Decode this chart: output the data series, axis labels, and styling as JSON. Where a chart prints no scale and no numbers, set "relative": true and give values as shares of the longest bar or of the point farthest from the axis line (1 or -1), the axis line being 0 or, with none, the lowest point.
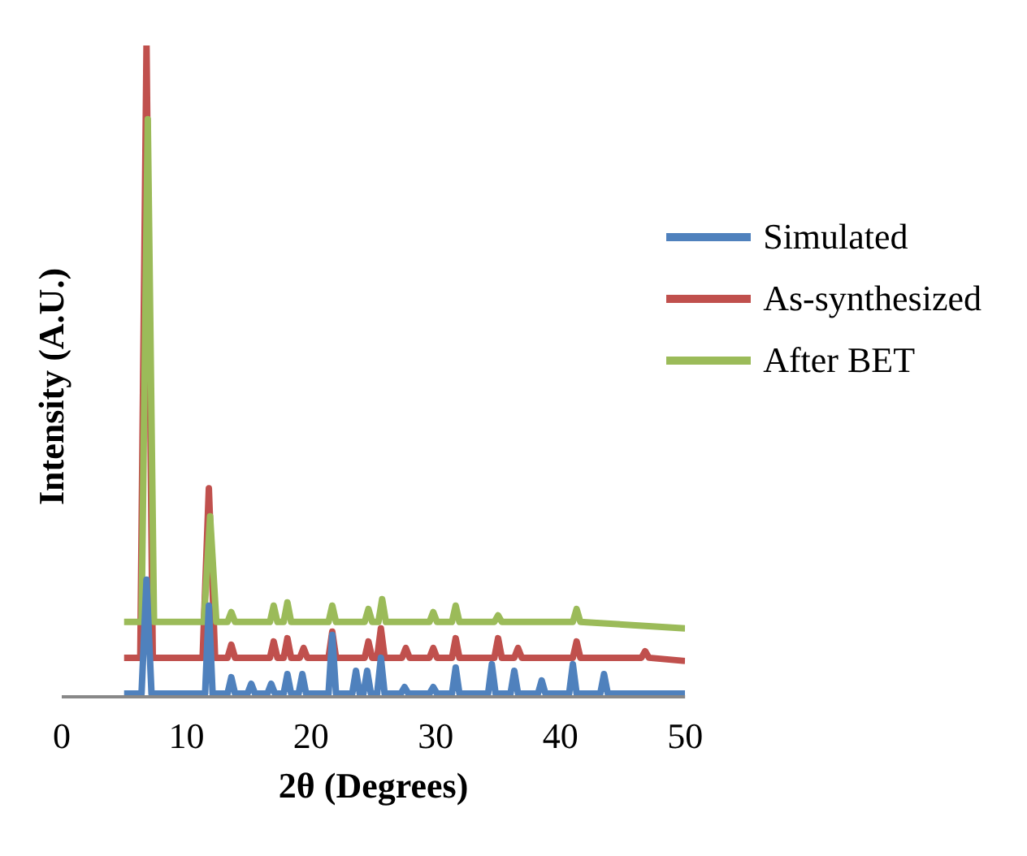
{
  "chart_data": {
    "type": "line",
    "relative": true,
    "xlabel": "2θ (Degrees)",
    "ylabel": "Intensity (A.U.)",
    "xlim": [
      0,
      50
    ],
    "xticks": [
      0,
      10,
      20,
      30,
      40,
      50
    ],
    "legend": "top right",
    "grid": false,
    "marker": "none",
    "line_style": "solid",
    "series": [
      {
        "name": "Simulated",
        "color": "#4f81bd",
        "x": [
          5,
          6.4,
          6.8,
          7.2,
          11.5,
          11.8,
          12.1,
          13.3,
          13.6,
          13.9,
          14.9,
          15.2,
          15.5,
          16.5,
          16.8,
          17.1,
          17.8,
          18.1,
          18.4,
          19.0,
          19.3,
          19.6,
          21.4,
          21.7,
          22.0,
          23.3,
          23.6,
          23.9,
          24.2,
          24.5,
          24.8,
          25.3,
          25.6,
          25.9,
          27.2,
          27.5,
          27.8,
          29.5,
          29.8,
          30.1,
          31.3,
          31.6,
          31.9,
          34.2,
          34.5,
          34.8,
          36.0,
          36.3,
          36.6,
          38.2,
          38.5,
          38.8,
          40.7,
          41.0,
          41.3,
          43.2,
          43.5,
          43.8,
          50
        ],
        "values": [
          0.005,
          0.005,
          0.18,
          0.005,
          0.005,
          0.14,
          0.005,
          0.005,
          0.03,
          0.005,
          0.005,
          0.02,
          0.005,
          0.005,
          0.02,
          0.005,
          0.005,
          0.035,
          0.005,
          0.005,
          0.035,
          0.005,
          0.005,
          0.095,
          0.005,
          0.005,
          0.04,
          0.005,
          0.005,
          0.04,
          0.005,
          0.005,
          0.06,
          0.005,
          0.005,
          0.015,
          0.005,
          0.005,
          0.015,
          0.005,
          0.005,
          0.045,
          0.005,
          0.005,
          0.05,
          0.005,
          0.005,
          0.04,
          0.005,
          0.005,
          0.025,
          0.005,
          0.005,
          0.05,
          0.005,
          0.005,
          0.035,
          0.005,
          0.005
        ]
      },
      {
        "name": "As-synthesized",
        "color": "#c0504d",
        "x": [
          5,
          6.3,
          6.8,
          7.3,
          11.3,
          11.8,
          12.3,
          13.3,
          13.6,
          13.9,
          16.7,
          17.0,
          17.3,
          17.8,
          18.1,
          18.4,
          19.1,
          19.4,
          19.7,
          21.4,
          21.7,
          22.0,
          24.3,
          24.6,
          24.9,
          25.3,
          25.6,
          25.9,
          27.3,
          27.6,
          27.9,
          29.5,
          29.8,
          30.1,
          31.3,
          31.6,
          31.9,
          34.7,
          35.0,
          35.3,
          36.3,
          36.6,
          36.9,
          41.0,
          41.3,
          41.6,
          46.5,
          46.8,
          47.1,
          50
        ],
        "values": [
          0.06,
          0.06,
          1.0,
          0.06,
          0.06,
          0.32,
          0.06,
          0.06,
          0.08,
          0.06,
          0.06,
          0.085,
          0.06,
          0.06,
          0.09,
          0.06,
          0.06,
          0.075,
          0.06,
          0.06,
          0.1,
          0.06,
          0.06,
          0.085,
          0.06,
          0.06,
          0.105,
          0.06,
          0.06,
          0.075,
          0.06,
          0.06,
          0.075,
          0.06,
          0.06,
          0.09,
          0.06,
          0.06,
          0.09,
          0.06,
          0.06,
          0.075,
          0.06,
          0.06,
          0.085,
          0.06,
          0.06,
          0.07,
          0.06,
          0.055
        ]
      },
      {
        "name": "After BET",
        "color": "#9bbb59",
        "x": [
          5,
          6.4,
          6.9,
          7.4,
          11.4,
          11.9,
          12.4,
          13.3,
          13.6,
          13.9,
          16.7,
          17.0,
          17.3,
          17.8,
          18.1,
          18.4,
          21.4,
          21.7,
          22.0,
          24.3,
          24.6,
          24.9,
          25.4,
          25.7,
          26.0,
          29.5,
          29.8,
          30.1,
          31.3,
          31.6,
          31.9,
          34.7,
          35.0,
          35.3,
          41.0,
          41.3,
          41.6,
          50
        ],
        "values": [
          0.115,
          0.115,
          0.887,
          0.115,
          0.115,
          0.277,
          0.115,
          0.115,
          0.13,
          0.115,
          0.115,
          0.14,
          0.115,
          0.115,
          0.145,
          0.115,
          0.115,
          0.14,
          0.115,
          0.115,
          0.135,
          0.115,
          0.115,
          0.15,
          0.115,
          0.115,
          0.13,
          0.115,
          0.115,
          0.14,
          0.115,
          0.115,
          0.125,
          0.115,
          0.115,
          0.135,
          0.115,
          0.105
        ]
      }
    ]
  }
}
